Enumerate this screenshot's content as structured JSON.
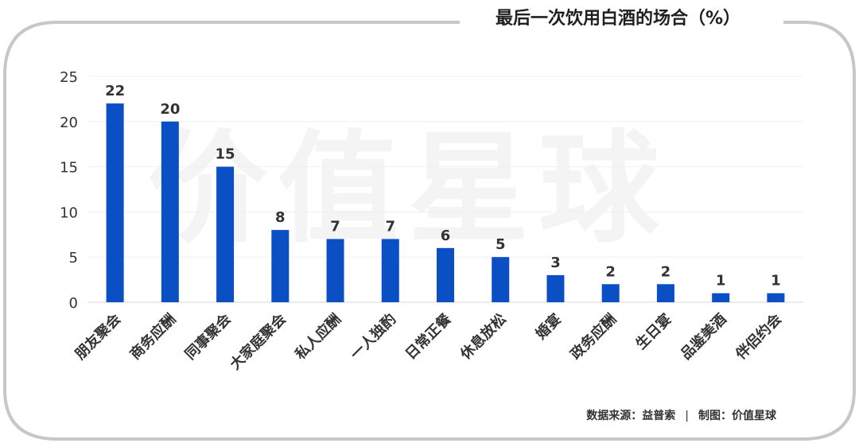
{
  "watermark": "价值星球",
  "footer": {
    "source": "数据来源：益普索",
    "separator": "|",
    "credit": "制图：价值星球"
  },
  "colors": {
    "bar": "#0a4fc4",
    "frame": "#c7c7c7",
    "grid": "#f0f0f0",
    "text": "#333333"
  },
  "chart_data": {
    "type": "bar",
    "title": "最后一次饮用白酒的场合（%）",
    "xlabel": "",
    "ylabel": "",
    "categories": [
      "朋友聚会",
      "商务应酬",
      "同事聚会",
      "大家庭聚会",
      "私人应酬",
      "一人独酌",
      "日常正餐",
      "休息放松",
      "婚宴",
      "政务应酬",
      "生日宴",
      "品鉴美酒",
      "伴侣约会"
    ],
    "values": [
      22,
      20,
      15,
      8,
      7,
      7,
      6,
      5,
      3,
      2,
      2,
      1,
      1
    ],
    "ylim": [
      0,
      25
    ],
    "yticks": [
      0,
      5,
      10,
      15,
      20,
      25
    ],
    "grid": true,
    "legend": "none",
    "data_labels": true
  }
}
